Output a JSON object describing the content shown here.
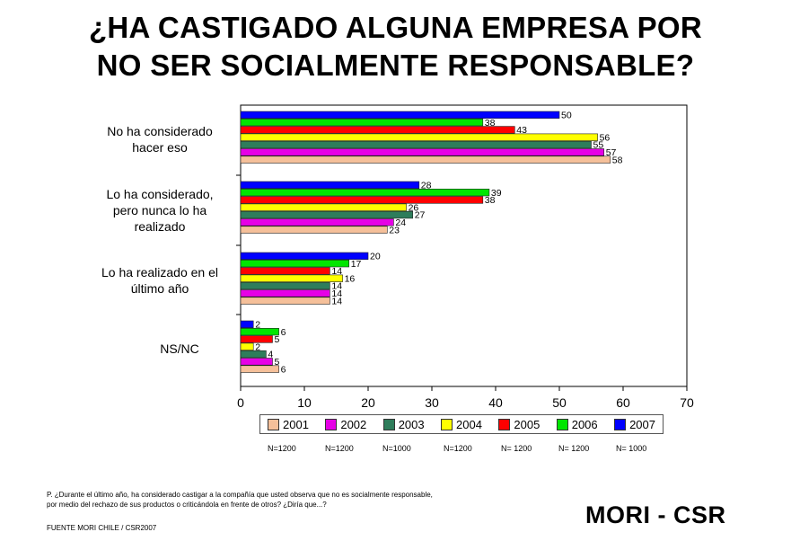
{
  "title_line1": "¿HA CASTIGADO ALGUNA EMPRESA POR",
  "title_line2": "NO SER SOCIALMENTE RESPONSABLE?",
  "question_line1": "P. ¿Durante el último año, ha considerado castigar a la compañía que usted observa que no es socialmente responsable,",
  "question_line2": "por medio del rechazo de sus productos o criticándola en frente de otros? ¿Diría que...?",
  "source": "FUENTE MORI CHILE / CSR2007",
  "brand": "MORI - CSR",
  "chart_data": {
    "type": "bar",
    "orientation": "horizontal",
    "categories": [
      [
        "No ha considerado",
        "hacer eso"
      ],
      [
        "Lo ha considerado,",
        "pero nunca lo ha",
        "realizado"
      ],
      [
        "Lo ha realizado en el",
        "último año"
      ],
      [
        "NS/NC"
      ]
    ],
    "xlim": [
      0,
      70
    ],
    "xticks": [
      0,
      10,
      20,
      30,
      40,
      50,
      60,
      70
    ],
    "grid": false,
    "legend_position": "bottom",
    "series": [
      {
        "name": "2001",
        "color": "#f5c09a",
        "n": "N=1200",
        "values": [
          58,
          23,
          14,
          6
        ]
      },
      {
        "name": "2002",
        "color": "#e600e6",
        "n": "N=1200",
        "values": [
          57,
          24,
          14,
          5
        ]
      },
      {
        "name": "2003",
        "color": "#2e7d5b",
        "n": "N=1000",
        "values": [
          55,
          27,
          14,
          4
        ]
      },
      {
        "name": "2004",
        "color": "#ffff00",
        "n": "N=1200",
        "values": [
          56,
          26,
          16,
          2
        ]
      },
      {
        "name": "2005",
        "color": "#ff0000",
        "n": "N= 1200",
        "values": [
          43,
          38,
          14,
          5
        ]
      },
      {
        "name": "2006",
        "color": "#00e600",
        "n": "N= 1200",
        "values": [
          38,
          39,
          17,
          6
        ]
      },
      {
        "name": "2007",
        "color": "#0000ff",
        "n": "N= 1000",
        "values": [
          50,
          28,
          20,
          2
        ]
      }
    ]
  }
}
